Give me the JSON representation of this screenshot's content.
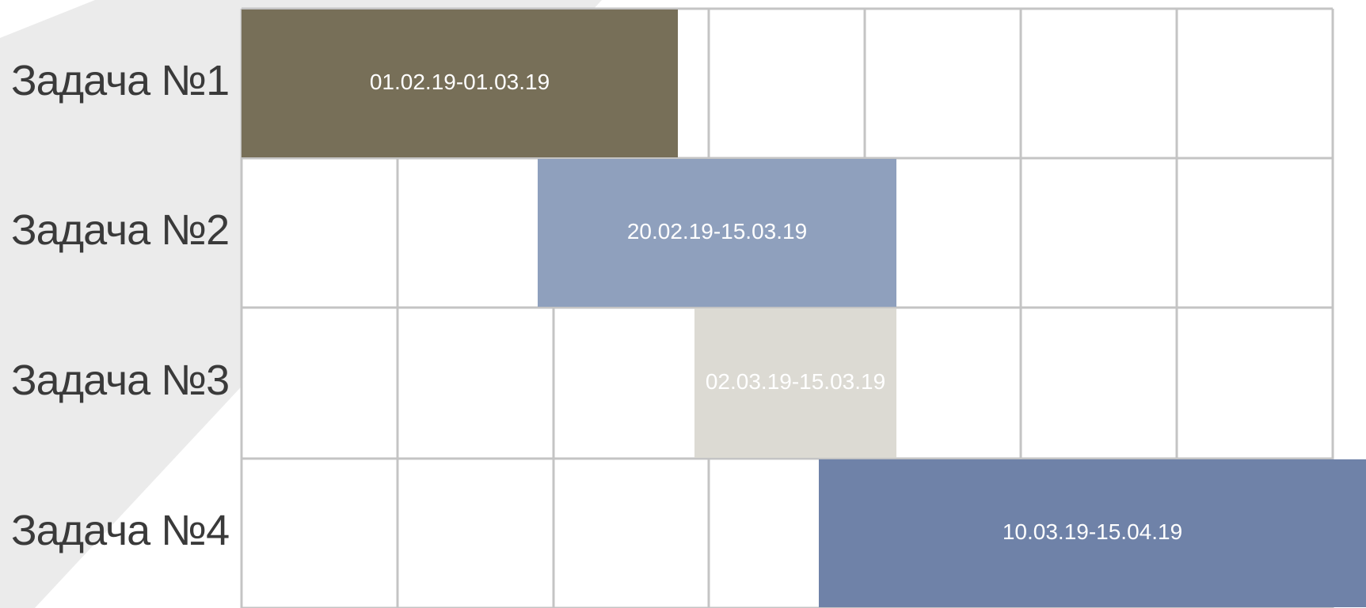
{
  "tasks": [
    {
      "name": "Задача №1",
      "dates": "01.02.19-01.03.19"
    },
    {
      "name": "Задача №2",
      "dates": "20.02.19-15.03.19"
    },
    {
      "name": "Задача №3",
      "dates": "02.03.19-15.03.19"
    },
    {
      "name": "Задача №4",
      "dates": "10.03.19-15.04.19"
    }
  ]
}
